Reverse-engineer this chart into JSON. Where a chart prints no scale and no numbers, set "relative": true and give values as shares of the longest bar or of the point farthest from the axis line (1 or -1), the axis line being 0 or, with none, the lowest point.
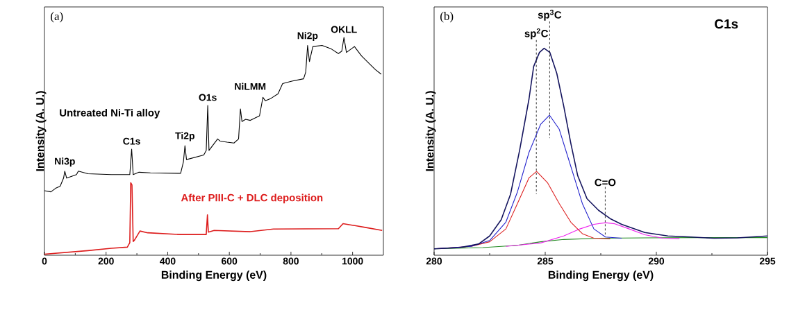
{
  "chart_data": [
    {
      "type": "line",
      "relative": true,
      "xlabel": "Binding Energy (eV)",
      "ylabel": "Intensity (A. U.)",
      "xlim": [
        0,
        1100
      ],
      "xticks": [
        0,
        200,
        400,
        600,
        800,
        1000
      ],
      "tick_labels": "x",
      "marker": "none",
      "line_style": "solid",
      "annotations": [
        "(a)",
        {
          "text": "Ni3p",
          "x": 66,
          "y": 0.386
        },
        {
          "text": "C1s",
          "x": 283,
          "y": 0.487
        },
        {
          "text": "Ti2p",
          "x": 456,
          "y": 0.503
        },
        {
          "text": "O1s",
          "x": 530,
          "y": 0.688
        },
        "NiLMM",
        {
          "text": "Ni2p",
          "x": 854,
          "y": 0.963
        },
        {
          "text": "OKLL",
          "x": 972,
          "y": 1.0
        }
      ],
      "series": [
        {
          "name": "Untreated Ni-Ti alloy",
          "color": "#000000",
          "x": [
            0,
            21,
            36,
            51,
            62,
            66,
            72,
            104,
            110,
            141,
            217,
            277,
            283,
            288,
            307,
            344,
            442,
            451,
            456,
            461,
            517,
            525,
            530,
            534,
            562,
            570,
            593,
            615,
            630,
            636,
            641,
            653,
            668,
            698,
            709,
            717,
            735,
            758,
            773,
            803,
            841,
            848,
            854,
            860,
            871,
            901,
            931,
            954,
            965,
            972,
            980,
            1006,
            1029,
            1059,
            1074,
            1093
          ],
          "values": [
            0.296,
            0.291,
            0.307,
            0.317,
            0.354,
            0.386,
            0.354,
            0.37,
            0.386,
            0.374,
            0.37,
            0.37,
            0.487,
            0.37,
            0.381,
            0.378,
            0.376,
            0.429,
            0.503,
            0.439,
            0.46,
            0.481,
            0.688,
            0.481,
            0.534,
            0.524,
            0.519,
            0.515,
            0.534,
            0.672,
            0.614,
            0.624,
            0.619,
            0.64,
            0.725,
            0.709,
            0.72,
            0.741,
            0.788,
            0.799,
            0.81,
            0.841,
            0.963,
            0.889,
            0.958,
            0.963,
            0.947,
            0.926,
            0.937,
            1.0,
            0.931,
            0.958,
            0.915,
            0.873,
            0.852,
            0.831
          ]
        },
        {
          "name": "After PIII-C + DLC deposition",
          "color": "#dd1c1c",
          "x": [
            0,
            141,
            217,
            269,
            277,
            280,
            284,
            288,
            292,
            310,
            335,
            442,
            525,
            529,
            532,
            551,
            668,
            743,
            954,
            969,
            999,
            1044,
            1096
          ],
          "values": [
            0.005,
            0.021,
            0.032,
            0.037,
            0.058,
            0.333,
            0.323,
            0.063,
            0.069,
            0.111,
            0.103,
            0.095,
            0.095,
            0.185,
            0.106,
            0.114,
            0.108,
            0.12,
            0.122,
            0.145,
            0.138,
            0.127,
            0.114
          ]
        }
      ]
    },
    {
      "type": "line",
      "relative": true,
      "xlabel": "Binding Energy (eV)",
      "ylabel": "Intensity (A. U.)",
      "xlim": [
        280,
        295
      ],
      "xticks": [
        280,
        285,
        290,
        295
      ],
      "tick_labels": "x",
      "marker": "none",
      "line_style": "solid",
      "annotations": [
        "(b)",
        "C1s"
      ],
      "ref_lines": [
        {
          "axis": "x",
          "value": 284.6,
          "label": "sp$^{2}$C",
          "line_style": "dashed"
        },
        {
          "axis": "x",
          "value": 285.2,
          "label": "sp$^{3}$C",
          "line_style": "dashed"
        },
        {
          "axis": "x",
          "value": 287.7,
          "label": "C=O",
          "line_style": "dashed"
        }
      ],
      "series": [
        {
          "color": "#228b22",
          "x": [
            280,
            282.19,
            283.75,
            284.79,
            285.83,
            287.4,
            289.48,
            291.56,
            295
          ],
          "values": [
            0.031,
            0.037,
            0.048,
            0.065,
            0.076,
            0.082,
            0.084,
            0.085,
            0.085
          ]
        },
        {
          "color": "#ee22ee",
          "x": [
            283.23,
            284.79,
            285.83,
            286.56,
            287.19,
            287.71,
            288.13,
            288.65,
            289.48,
            290.31,
            291.04
          ],
          "values": [
            0.043,
            0.059,
            0.093,
            0.127,
            0.149,
            0.157,
            0.152,
            0.132,
            0.099,
            0.082,
            0.08
          ]
        },
        {
          "color": "#dd2222",
          "x": [
            280,
            281.67,
            282.5,
            283.23,
            283.75,
            284.27,
            284.61,
            285.1,
            285.63,
            286.15,
            286.67,
            287.19,
            287.92
          ],
          "values": [
            0.031,
            0.043,
            0.065,
            0.127,
            0.25,
            0.374,
            0.405,
            0.351,
            0.25,
            0.16,
            0.104,
            0.082,
            0.079
          ]
        },
        {
          "color": "#2222cc",
          "x": [
            280,
            281.67,
            282.5,
            283.23,
            283.75,
            284.27,
            284.79,
            285.19,
            285.63,
            286.15,
            286.67,
            287.19,
            287.71,
            288.44
          ],
          "values": [
            0.031,
            0.043,
            0.071,
            0.16,
            0.306,
            0.497,
            0.632,
            0.677,
            0.609,
            0.43,
            0.25,
            0.127,
            0.088,
            0.082
          ]
        },
        {
          "color": "#14145e",
          "x": [
            280,
            281.15,
            282.0,
            282.5,
            283.02,
            283.44,
            283.85,
            284.27,
            284.48,
            284.74,
            284.95,
            285.21,
            285.52,
            285.83,
            286.15,
            286.46,
            286.88,
            287.4,
            287.92,
            288.44,
            289.48,
            290.52,
            291.56,
            292.6,
            293.65,
            295
          ],
          "values": [
            0.031,
            0.037,
            0.054,
            0.093,
            0.172,
            0.295,
            0.508,
            0.755,
            0.912,
            0.98,
            1.0,
            0.98,
            0.879,
            0.722,
            0.542,
            0.385,
            0.273,
            0.217,
            0.177,
            0.149,
            0.11,
            0.093,
            0.088,
            0.082,
            0.084,
            0.093
          ]
        }
      ]
    }
  ]
}
